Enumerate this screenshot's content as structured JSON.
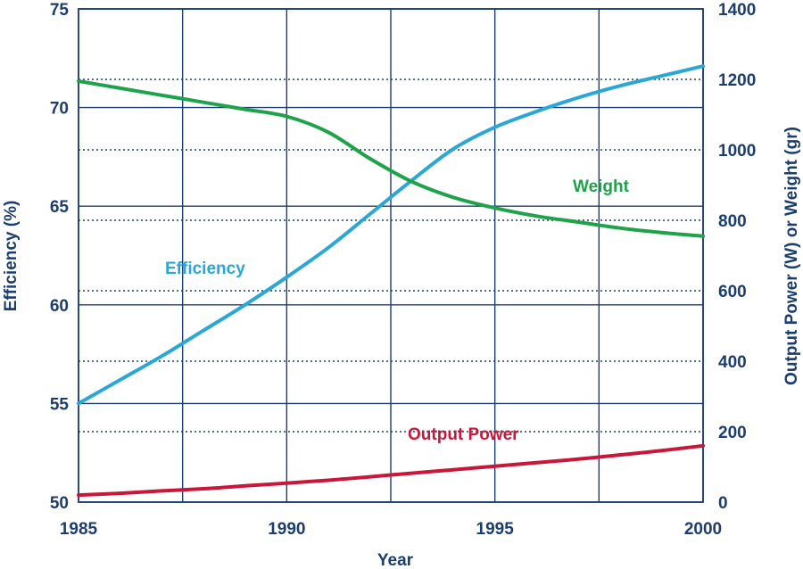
{
  "chart_data": {
    "type": "line",
    "xlabel": "Year",
    "ylabel_left": "Efficiency (%)",
    "ylabel_right": "Output Power (W) or Weight (gr)",
    "xlim": [
      1985,
      2000
    ],
    "ylim_left": [
      50,
      75
    ],
    "ylim_right": [
      0,
      1400
    ],
    "x_ticks": [
      "1985",
      "1990",
      "1995",
      "2000"
    ],
    "y_left_ticks": [
      "50",
      "55",
      "60",
      "65",
      "70",
      "75"
    ],
    "y_right_ticks": [
      "0",
      "200",
      "400",
      "600",
      "800",
      "1000",
      "1200",
      "1400"
    ],
    "grid": "solid vertical and left-axis horizontal lines; dotted right-axis horizontal lines",
    "colors": {
      "text": "#1c3e6e",
      "grid": "#1c3e6e",
      "efficiency": "#2aa7d4",
      "weight": "#1fa34a",
      "output_power": "#c8173a"
    },
    "series": [
      {
        "name": "Efficiency",
        "axis": "left",
        "color": "#2aa7d4",
        "label": "Efficiency",
        "x": [
          1985,
          1986,
          1987,
          1988,
          1989,
          1990,
          1991,
          1992,
          1993,
          1994,
          1995,
          1996,
          1997,
          1998,
          1999,
          2000
        ],
        "y": [
          55.0,
          56.2,
          57.4,
          58.7,
          60.0,
          61.4,
          62.9,
          64.6,
          66.3,
          67.9,
          69.0,
          69.8,
          70.5,
          71.1,
          71.6,
          72.1
        ]
      },
      {
        "name": "Weight",
        "axis": "right",
        "color": "#1fa34a",
        "label": "Weight",
        "x": [
          1985,
          1986,
          1987,
          1988,
          1989,
          1990,
          1991,
          1992,
          1993,
          1994,
          1995,
          1996,
          1997,
          1998,
          1999,
          2000
        ],
        "y": [
          1195,
          1175,
          1155,
          1135,
          1115,
          1095,
          1050,
          975,
          910,
          865,
          835,
          812,
          795,
          778,
          765,
          755
        ]
      },
      {
        "name": "Output Power",
        "axis": "right",
        "color": "#c8173a",
        "label": "Output Power",
        "x": [
          1985,
          1986,
          1987,
          1988,
          1989,
          1990,
          1991,
          1992,
          1993,
          1994,
          1995,
          1996,
          1997,
          1998,
          1999,
          2000
        ],
        "y": [
          20,
          25,
          32,
          38,
          46,
          54,
          62,
          72,
          82,
          92,
          102,
          112,
          122,
          134,
          146,
          160
        ]
      }
    ]
  }
}
